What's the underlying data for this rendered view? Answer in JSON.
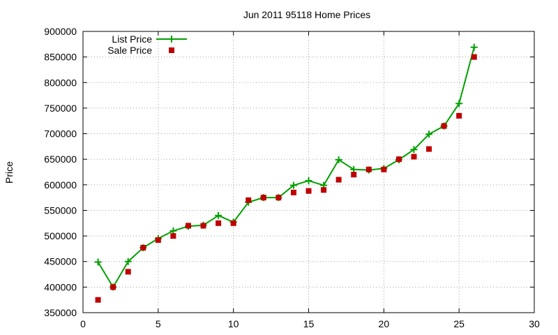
{
  "chart_data": {
    "type": "line",
    "title": "Jun 2011 95118 Home Prices",
    "xlabel": "",
    "ylabel": "Price",
    "xlim": [
      0,
      30
    ],
    "ylim": [
      350000,
      900000
    ],
    "x_ticks": [
      0,
      5,
      10,
      15,
      20,
      25,
      30
    ],
    "y_ticks": [
      350000,
      400000,
      450000,
      500000,
      550000,
      600000,
      650000,
      700000,
      750000,
      800000,
      850000,
      900000
    ],
    "grid": true,
    "legend_position": "top-left",
    "series": [
      {
        "name": "List Price",
        "style": "line-with-plus-markers",
        "color": "#00a000",
        "x": [
          1,
          2,
          3,
          4,
          5,
          6,
          7,
          8,
          9,
          10,
          11,
          12,
          13,
          14,
          15,
          16,
          17,
          18,
          19,
          20,
          21,
          22,
          23,
          24,
          25,
          26
        ],
        "values": [
          449000,
          400000,
          450000,
          477000,
          495000,
          510000,
          519000,
          521000,
          540000,
          527000,
          566000,
          575000,
          575000,
          599000,
          608000,
          599000,
          649000,
          630000,
          629000,
          632000,
          649000,
          669000,
          699000,
          715000,
          759000,
          869000
        ]
      },
      {
        "name": "Sale Price",
        "style": "square-markers",
        "color": "#c00000",
        "x": [
          1,
          2,
          3,
          4,
          5,
          6,
          7,
          8,
          9,
          10,
          11,
          12,
          13,
          14,
          15,
          16,
          17,
          18,
          19,
          20,
          21,
          22,
          23,
          24,
          25,
          26
        ],
        "values": [
          375000,
          400000,
          430000,
          477000,
          492000,
          500000,
          520000,
          520000,
          525000,
          525000,
          570000,
          575000,
          575000,
          585000,
          588000,
          590000,
          610000,
          620000,
          630000,
          630000,
          650000,
          655000,
          670000,
          715000,
          735000,
          850000
        ]
      }
    ]
  }
}
